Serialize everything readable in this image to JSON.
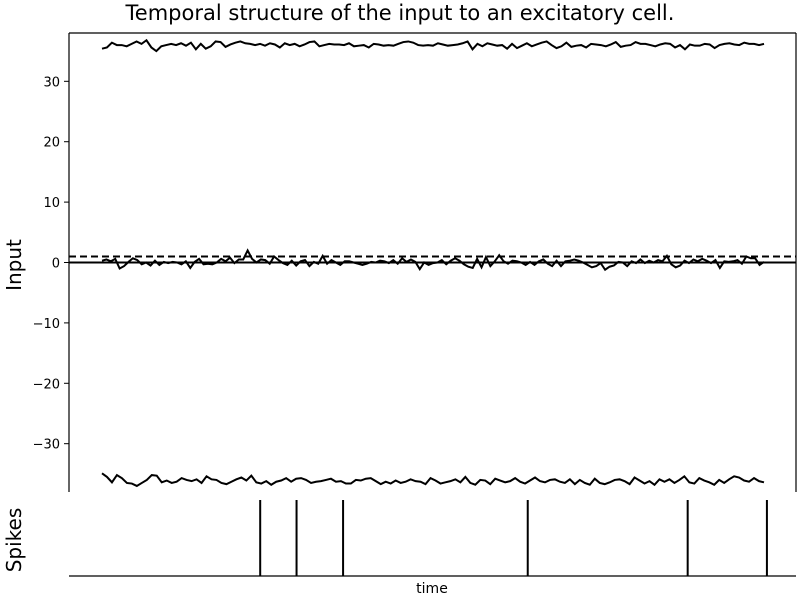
{
  "title": "Temporal structure of the input to an excitatory cell.",
  "chart_data": [
    {
      "type": "line",
      "title": "Temporal structure of the input to an excitatory cell.",
      "ylabel": "Input",
      "xlabel": "",
      "ylim": [
        -38,
        38
      ],
      "yticks": [
        30,
        20,
        10,
        0,
        -10,
        -20,
        -30
      ],
      "ytick_labels": [
        "30",
        "20",
        "10",
        "0",
        "−10",
        "−20",
        "−30"
      ],
      "grid": false,
      "series": [
        {
          "style": "solid",
          "values": [
            35.4,
            35.6,
            36.4,
            36.0,
            36.0,
            35.8,
            36.2,
            36.6,
            36.2,
            36.8,
            35.6,
            35.0,
            35.8,
            36.0,
            36.2,
            36.0,
            36.3,
            35.9,
            36.4,
            35.3,
            36.2,
            35.4,
            35.8,
            36.6,
            36.5,
            35.7,
            36.1,
            36.4,
            36.6,
            36.3,
            36.2,
            36.0,
            36.2,
            35.9,
            36.3,
            36.1,
            35.6,
            36.3,
            36.0,
            36.2,
            35.8,
            36.1,
            36.5,
            36.6,
            35.8,
            36.0,
            36.2,
            36.1,
            36.1,
            36.0,
            36.3,
            35.8,
            35.9,
            36.0,
            35.6,
            36.2,
            36.1,
            35.9,
            36.0,
            35.9,
            36.2,
            36.5,
            36.6,
            36.4,
            36.0,
            35.9,
            36.0,
            35.9,
            36.3,
            36.1,
            35.9,
            36.0,
            36.1,
            36.3,
            36.6,
            35.3,
            36.2,
            35.8,
            36.3,
            36.1,
            35.9,
            36.0,
            35.4,
            36.2,
            35.5,
            35.9,
            36.3,
            35.8,
            36.1,
            36.4,
            36.6,
            36.0,
            35.5,
            35.8,
            36.4,
            35.7,
            35.9,
            36.0,
            35.6,
            36.2,
            36.1,
            36.0,
            35.8,
            36.1,
            36.5,
            35.7,
            35.9,
            36.0,
            36.5,
            36.2,
            36.2,
            36.0,
            35.8,
            36.1,
            36.3,
            36.2,
            35.6,
            36.0,
            35.3,
            36.1,
            35.9,
            35.9,
            36.2,
            36.1,
            35.5,
            36.0,
            36.2,
            36.3,
            36.1,
            36.0,
            36.4,
            36.2,
            36.2,
            36.0,
            36.2
          ],
          "color": "#000000"
        },
        {
          "style": "solid",
          "values": [
            0.3,
            0.5,
            0.2,
            0.6,
            -1.0,
            -0.6,
            0.1,
            0.7,
            0.4,
            -0.3,
            0.0,
            -0.5,
            0.3,
            -0.4,
            0.1,
            -0.1,
            0.1,
            0.0,
            -0.3,
            0.2,
            -0.9,
            0.1,
            0.6,
            -0.3,
            -0.2,
            -0.3,
            0.0,
            0.6,
            0.2,
            0.8,
            -0.1,
            0.5,
            0.5,
            2.0,
            0.6,
            0.0,
            0.5,
            0.4,
            -0.2,
            1.0,
            0.4,
            -0.1,
            -0.4,
            0.3,
            -0.5,
            0.2,
            0.4,
            -0.6,
            0.1,
            -0.2,
            1.1,
            -0.2,
            0.4,
            0.0,
            -0.4,
            0.2,
            0.2,
            0.0,
            -0.2,
            -0.4,
            -0.2,
            0.1,
            0.0,
            0.3,
            0.2,
            -0.1,
            0.4,
            -0.2,
            0.7,
            0.1,
            0.5,
            0.1,
            -1.1,
            0.0,
            -0.4,
            -0.1,
            0.0,
            0.4,
            -0.3,
            0.3,
            0.7,
            0.3,
            -0.3,
            -0.7,
            -0.9,
            0.6,
            -0.8,
            0.9,
            -0.6,
            0.2,
            1.2,
            0.2,
            -0.2,
            0.3,
            0.2,
            0.0,
            -0.4,
            0.1,
            -0.4,
            0.2,
            0.5,
            -0.2,
            -0.6,
            0.3,
            -0.6,
            0.2,
            0.3,
            0.5,
            0.3,
            0.0,
            -0.4,
            -0.8,
            -0.6,
            -0.1,
            -1.2,
            -0.7,
            -0.5,
            0.1,
            0.0,
            -0.6,
            0.2,
            -0.1,
            0.5,
            -0.1,
            0.3,
            0.0,
            0.4,
            0.2,
            1.1,
            -0.3,
            -0.8,
            -0.5,
            0.3,
            -0.1,
            0.5,
            0.2,
            0.6,
            0.3,
            -0.1,
            0.4,
            -0.9,
            0.2,
            0.1,
            0.2,
            0.4,
            -0.2,
            1.0,
            0.7,
            0.7,
            -0.4,
            0.1
          ],
          "color": "#000000"
        },
        {
          "style": "solid",
          "values": [
            -34.9,
            -35.5,
            -36.4,
            -35.2,
            -35.7,
            -36.5,
            -36.6,
            -37.0,
            -36.5,
            -36.0,
            -35.2,
            -35.3,
            -36.4,
            -36.1,
            -36.5,
            -36.3,
            -35.7,
            -36.0,
            -36.2,
            -35.9,
            -36.5,
            -35.4,
            -35.9,
            -36.0,
            -36.5,
            -36.7,
            -36.3,
            -35.9,
            -35.6,
            -36.1,
            -35.3,
            -36.4,
            -36.6,
            -36.2,
            -36.8,
            -36.3,
            -36.1,
            -35.7,
            -36.3,
            -35.8,
            -35.7,
            -36.0,
            -36.5,
            -36.3,
            -36.2,
            -36.0,
            -35.8,
            -36.3,
            -36.2,
            -36.6,
            -36.6,
            -36.0,
            -36.1,
            -35.8,
            -35.7,
            -36.2,
            -36.7,
            -36.3,
            -36.6,
            -36.1,
            -36.5,
            -36.3,
            -35.9,
            -36.2,
            -36.3,
            -36.7,
            -35.7,
            -36.1,
            -36.6,
            -36.4,
            -36.2,
            -35.9,
            -36.4,
            -35.5,
            -36.5,
            -36.8,
            -36.0,
            -36.1,
            -36.7,
            -35.8,
            -36.1,
            -36.4,
            -36.2,
            -35.7,
            -36.3,
            -36.6,
            -36.1,
            -35.6,
            -36.2,
            -36.4,
            -36.0,
            -35.9,
            -36.3,
            -36.5,
            -35.9,
            -36.7,
            -36.0,
            -36.5,
            -36.8,
            -35.8,
            -36.5,
            -36.7,
            -36.4,
            -36.0,
            -35.9,
            -36.2,
            -36.7,
            -35.6,
            -36.1,
            -36.6,
            -36.2,
            -36.8,
            -35.9,
            -36.3,
            -35.9,
            -36.5,
            -36.0,
            -35.4,
            -36.4,
            -36.6,
            -35.7,
            -36.1,
            -36.4,
            -36.8,
            -36.0,
            -36.5,
            -35.9,
            -35.4,
            -35.6,
            -36.1,
            -36.3,
            -35.7,
            -36.2,
            -36.4
          ],
          "color": "#000000"
        },
        {
          "style": "dashed",
          "values": [
            1,
            1
          ],
          "color": "#000000"
        },
        {
          "style": "solid",
          "values": [
            0,
            0
          ],
          "color": "#000000"
        }
      ]
    },
    {
      "type": "event-raster",
      "ylabel": "Spikes",
      "xlabel": "time",
      "spike_times_fraction": [
        0.263,
        0.313,
        0.377,
        0.631,
        0.851,
        0.96
      ]
    }
  ]
}
